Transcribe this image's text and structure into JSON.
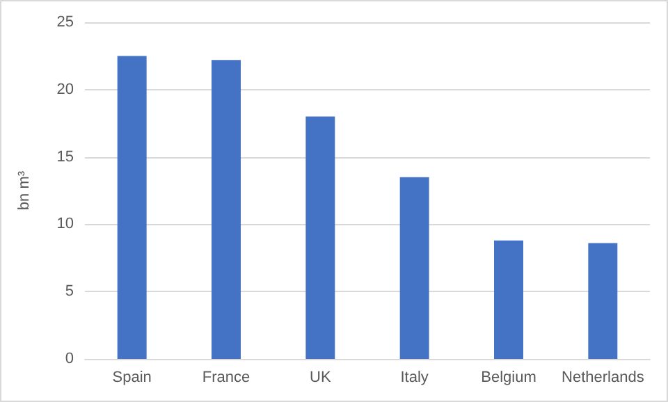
{
  "chart_data": {
    "type": "bar",
    "ylabel": "bn m³",
    "categories": [
      "Spain",
      "France",
      "UK",
      "Italy",
      "Belgium",
      "Netherlands"
    ],
    "values": [
      22.5,
      22.2,
      18.0,
      13.5,
      8.8,
      8.6
    ],
    "color": "#4472c4",
    "ylim": [
      0,
      25
    ],
    "yticks": [
      0,
      5,
      10,
      15,
      20,
      25
    ],
    "grid": "y"
  }
}
